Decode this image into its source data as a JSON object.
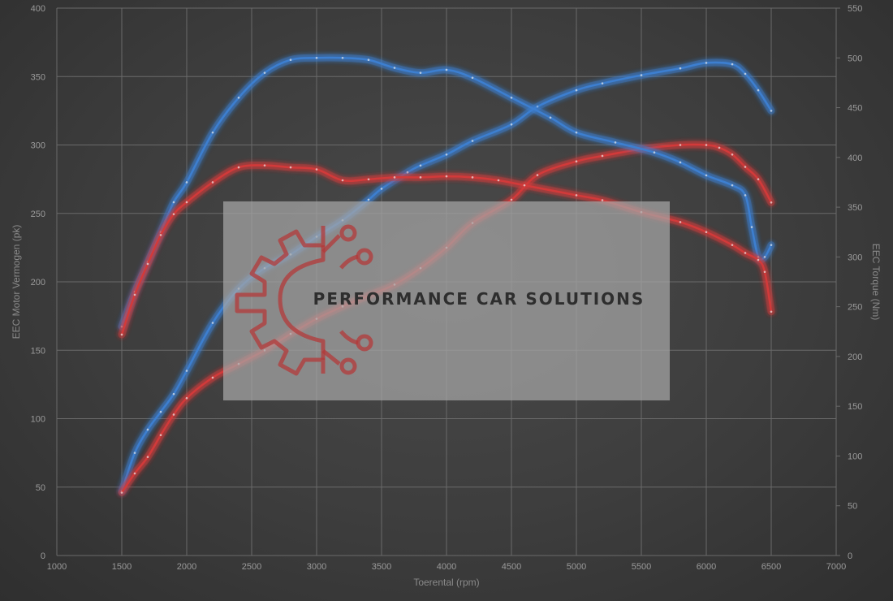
{
  "chart_data": {
    "type": "line",
    "xlabel": "Toerental (rpm)",
    "ylabel_left": "EEC Motor Vermogen (pk)",
    "ylabel_right": "EEC Torque (Nm)",
    "xlim": [
      1000,
      7000
    ],
    "ylim_left": [
      0,
      400
    ],
    "ylim_right": [
      0,
      550
    ],
    "x_ticks": [
      1000,
      1500,
      2000,
      2500,
      3000,
      3500,
      4000,
      4500,
      5000,
      5500,
      6000,
      6500,
      7000
    ],
    "y_left_ticks": [
      0,
      50,
      100,
      150,
      200,
      250,
      300,
      350,
      400
    ],
    "y_right_ticks": [
      0,
      50,
      100,
      150,
      200,
      250,
      300,
      350,
      400,
      450,
      500,
      550
    ],
    "grid": true,
    "series": [
      {
        "axis": "left",
        "color": "#3d7fd0",
        "x": [
          1500,
          1600,
          1700,
          1800,
          1900,
          2000,
          2200,
          2400,
          2600,
          2800,
          3000,
          3200,
          3400,
          3500,
          3700,
          3800,
          4000,
          4200,
          4500,
          4700,
          5000,
          5200,
          5500,
          5800,
          6000,
          6200,
          6300,
          6400,
          6500
        ],
        "values": [
          47,
          75,
          92,
          105,
          118,
          135,
          170,
          195,
          210,
          220,
          233,
          245,
          260,
          268,
          280,
          285,
          293,
          303,
          315,
          328,
          340,
          345,
          351,
          356,
          360,
          359,
          352,
          340,
          325
        ]
      },
      {
        "axis": "left",
        "color": "#d23a3a",
        "x": [
          1500,
          1600,
          1700,
          1800,
          1900,
          2000,
          2200,
          2400,
          2600,
          2800,
          3000,
          3200,
          3400,
          3600,
          3800,
          4000,
          4200,
          4500,
          4700,
          5000,
          5200,
          5500,
          5800,
          6000,
          6100,
          6200,
          6300,
          6400,
          6500
        ],
        "values": [
          46,
          60,
          72,
          88,
          103,
          115,
          130,
          140,
          150,
          162,
          173,
          182,
          190,
          198,
          210,
          225,
          243,
          260,
          278,
          288,
          292,
          297,
          300,
          300,
          298,
          293,
          284,
          275,
          258
        ]
      },
      {
        "axis": "right",
        "color": "#3d7fd0",
        "x": [
          1500,
          1600,
          1700,
          1800,
          1900,
          2000,
          2200,
          2400,
          2600,
          2800,
          3000,
          3200,
          3400,
          3600,
          3800,
          4000,
          4200,
          4500,
          4800,
          5000,
          5300,
          5600,
          5800,
          6000,
          6200,
          6300,
          6350,
          6400,
          6450,
          6500
        ],
        "values": [
          230,
          265,
          295,
          325,
          355,
          375,
          425,
          460,
          485,
          498,
          500,
          500,
          498,
          490,
          485,
          488,
          480,
          460,
          440,
          425,
          415,
          405,
          395,
          382,
          372,
          362,
          330,
          300,
          300,
          312
        ]
      },
      {
        "axis": "right",
        "color": "#d23a3a",
        "x": [
          1500,
          1600,
          1700,
          1800,
          1900,
          2000,
          2200,
          2400,
          2600,
          2800,
          3000,
          3200,
          3400,
          3600,
          3800,
          4000,
          4200,
          4400,
          4600,
          5000,
          5200,
          5500,
          5800,
          6000,
          6200,
          6300,
          6400,
          6450,
          6500
        ],
        "values": [
          222,
          262,
          293,
          322,
          343,
          355,
          375,
          390,
          392,
          390,
          388,
          377,
          378,
          380,
          380,
          381,
          380,
          377,
          372,
          362,
          357,
          345,
          335,
          325,
          312,
          304,
          297,
          285,
          245
        ]
      }
    ]
  },
  "watermark": {
    "text": "PERFORMANCE CAR SOLUTIONS",
    "logo": "gear-circuit-logo"
  }
}
